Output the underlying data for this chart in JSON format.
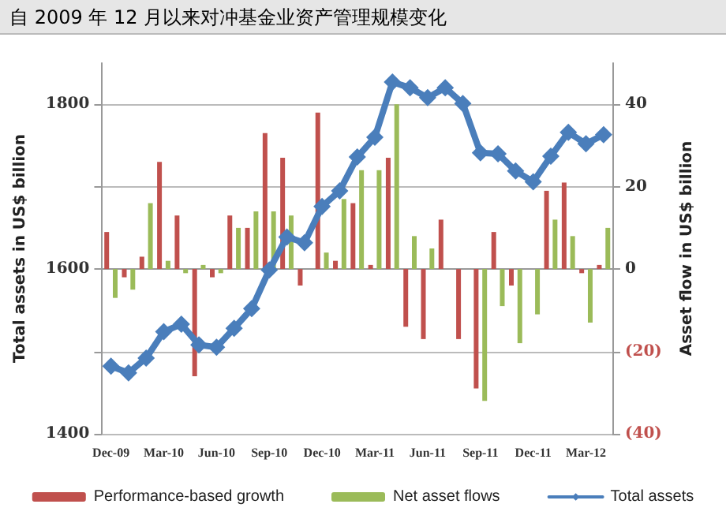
{
  "chart_data": {
    "type": "bar",
    "title": "自 2009 年 12 月以来对冲基金业资产管理规模变化",
    "categories": [
      "Dec-09",
      null,
      null,
      "Mar-10",
      null,
      null,
      "Jun-10",
      null,
      null,
      "Sep-10",
      null,
      null,
      "Dec-10",
      null,
      null,
      "Mar-11",
      null,
      null,
      "Jun-11",
      null,
      null,
      "Sep-11",
      null,
      null,
      "Dec-11",
      null,
      null,
      "Mar-12",
      null
    ],
    "series": [
      {
        "name": "Performance-based growth",
        "axis": "y2",
        "color": "#c0504d",
        "values": [
          9,
          -2,
          3,
          26,
          13,
          -26,
          -2,
          13,
          10,
          33,
          27,
          -4,
          38,
          2,
          16,
          1,
          27,
          -14,
          -17,
          12,
          -17,
          -29,
          9,
          -4,
          0,
          19,
          21,
          -1,
          1
        ]
      },
      {
        "name": "Net asset flows",
        "axis": "y2",
        "color": "#9bbb59",
        "values": [
          -7,
          -5,
          16,
          2,
          -1,
          1,
          -1,
          10,
          14,
          14,
          13,
          0,
          4,
          17,
          24,
          24,
          40,
          8,
          5,
          0,
          0,
          -32,
          -9,
          -18,
          -11,
          12,
          8,
          -13,
          10
        ]
      },
      {
        "name": "Total assets",
        "type": "line",
        "color": "#4a7ebb",
        "values": [
          1482,
          1474,
          1492,
          1524,
          1533,
          1508,
          1505,
          1528,
          1552,
          1599,
          1639,
          1632,
          1676,
          1695,
          1736,
          1760,
          1827,
          1820,
          1808,
          1820,
          1801,
          1741,
          1740,
          1719,
          1706,
          1737,
          1766,
          1752,
          1763
        ]
      }
    ],
    "ylabel": "Total assets in US$ billion",
    "y2label": "Asset flow in US$ billion",
    "ylim": [
      1400,
      1850
    ],
    "yticks": [
      1400,
      {
        "value": 1500,
        "label": null
      },
      1600,
      {
        "value": 1700,
        "label": null
      },
      1800
    ],
    "y2lim": [
      -40,
      50
    ],
    "y2ticks": [
      {
        "value": -40,
        "label": "(40)"
      },
      {
        "value": -20,
        "label": "(20)"
      },
      0,
      20,
      40
    ],
    "grid": "y",
    "legend": "bottom",
    "marker": "diamond",
    "line_style": "solid"
  }
}
